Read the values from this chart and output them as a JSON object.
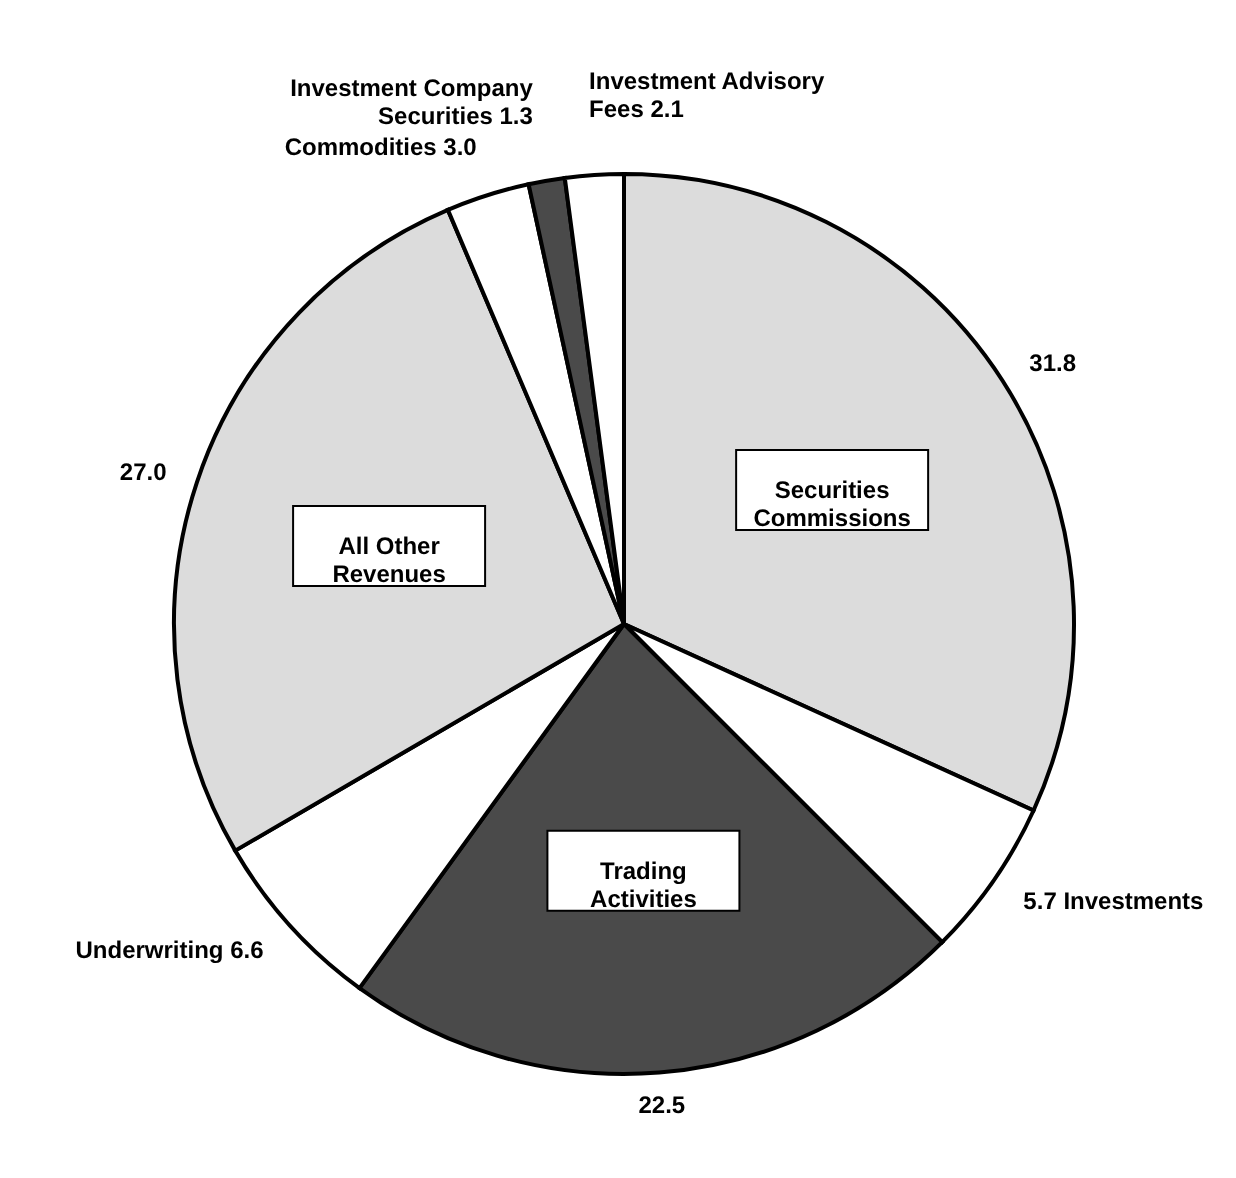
{
  "chart_data": {
    "type": "pie",
    "categories": [
      "Securities Commissions",
      "Investments",
      "Trading Activities",
      "Underwriting",
      "All Other Revenues",
      "Commodities",
      "Investment Company Securities",
      "Investment Advisory Fees"
    ],
    "values": [
      31.8,
      5.7,
      22.5,
      6.6,
      27.0,
      3.0,
      1.3,
      2.1
    ],
    "value_labels": [
      "31.8",
      "5.7",
      "22.5",
      "6.6",
      "27.0",
      "3.0",
      "1.3",
      "2.1"
    ],
    "colors": [
      "#dcdcdc",
      "#ffffff",
      "#4a4a4a",
      "#ffffff",
      "#dcdcdc",
      "#ffffff",
      "#4a4a4a",
      "#ffffff"
    ]
  }
}
